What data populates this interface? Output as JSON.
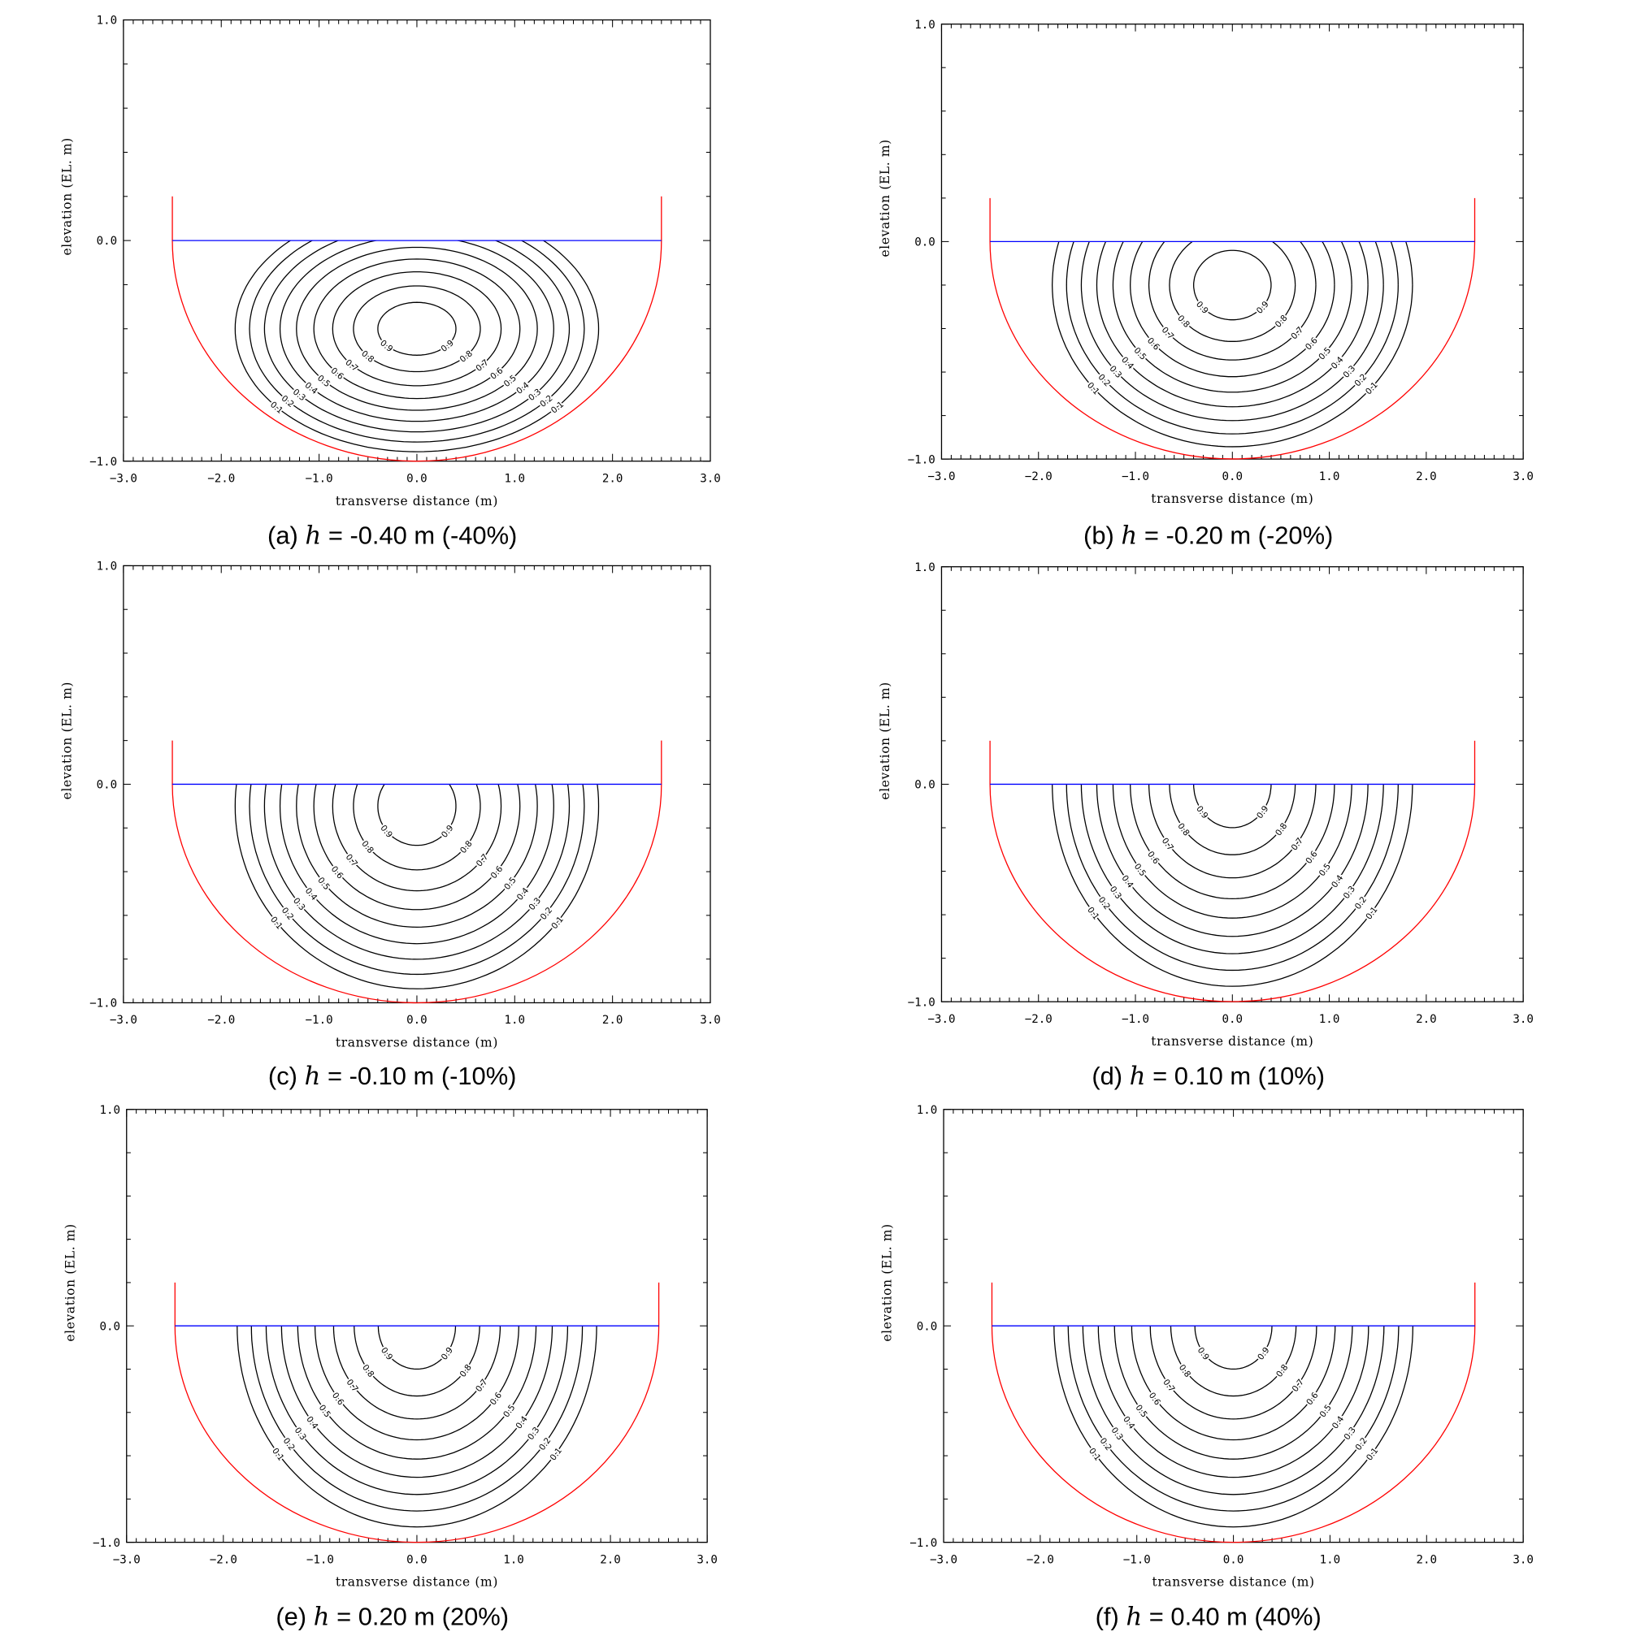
{
  "chart_data": [
    {
      "type": "contour",
      "panel": "(a)",
      "caption": {
        "label": "(a)",
        "variable": "h",
        "equals": "=",
        "value": "-0.40 m (-40%)"
      },
      "h_m": -0.4,
      "h_percent": -40
    },
    {
      "type": "contour",
      "panel": "(b)",
      "caption": {
        "label": "(b)",
        "variable": "h",
        "equals": "=",
        "value": "-0.20 m (-20%)"
      },
      "h_m": -0.2,
      "h_percent": -20
    },
    {
      "type": "contour",
      "panel": "(c)",
      "caption": {
        "label": "(c)",
        "variable": "h",
        "equals": "=",
        "value": "-0.10 m (-10%)"
      },
      "h_m": -0.1,
      "h_percent": -10
    },
    {
      "type": "contour",
      "panel": "(d)",
      "caption": {
        "label": "(d)",
        "variable": "h",
        "equals": "=",
        "value": "0.10 m (10%)"
      },
      "h_m": 0.1,
      "h_percent": 10
    },
    {
      "type": "contour",
      "panel": "(e)",
      "caption": {
        "label": "(e)",
        "variable": "h",
        "equals": "=",
        "value": "0.20 m (20%)"
      },
      "h_m": 0.2,
      "h_percent": 20
    },
    {
      "type": "contour",
      "panel": "(f)",
      "caption": {
        "label": "(f)",
        "variable": "h",
        "equals": "=",
        "value": "0.40 m (40%)"
      },
      "h_m": 0.4,
      "h_percent": 40
    }
  ],
  "shared": {
    "xlabel": "transverse distance (m)",
    "ylabel": "elevation (EL. m)",
    "xlim": [
      -3.0,
      3.0
    ],
    "ylim": [
      -1.0,
      1.0
    ],
    "xticks": [
      "−3.0",
      "−2.0",
      "−1.0",
      "0.0",
      "1.0",
      "2.0",
      "3.0"
    ],
    "yticks": [
      "−1.0",
      "0.0",
      "1.0"
    ],
    "contour_levels": [
      0.1,
      0.2,
      0.3,
      0.4,
      0.5,
      0.6,
      0.7,
      0.8,
      0.9
    ],
    "channel": {
      "half_width_m": 2.5,
      "bottom_elevation_m": -1.0,
      "wall_top_m": 0.2,
      "water_surface_m": 0.0
    },
    "colors": {
      "channel_boundary": "#ff0000",
      "water_surface": "#0000ff",
      "contours": "#000000",
      "axes": "#000000"
    },
    "grid": false
  }
}
